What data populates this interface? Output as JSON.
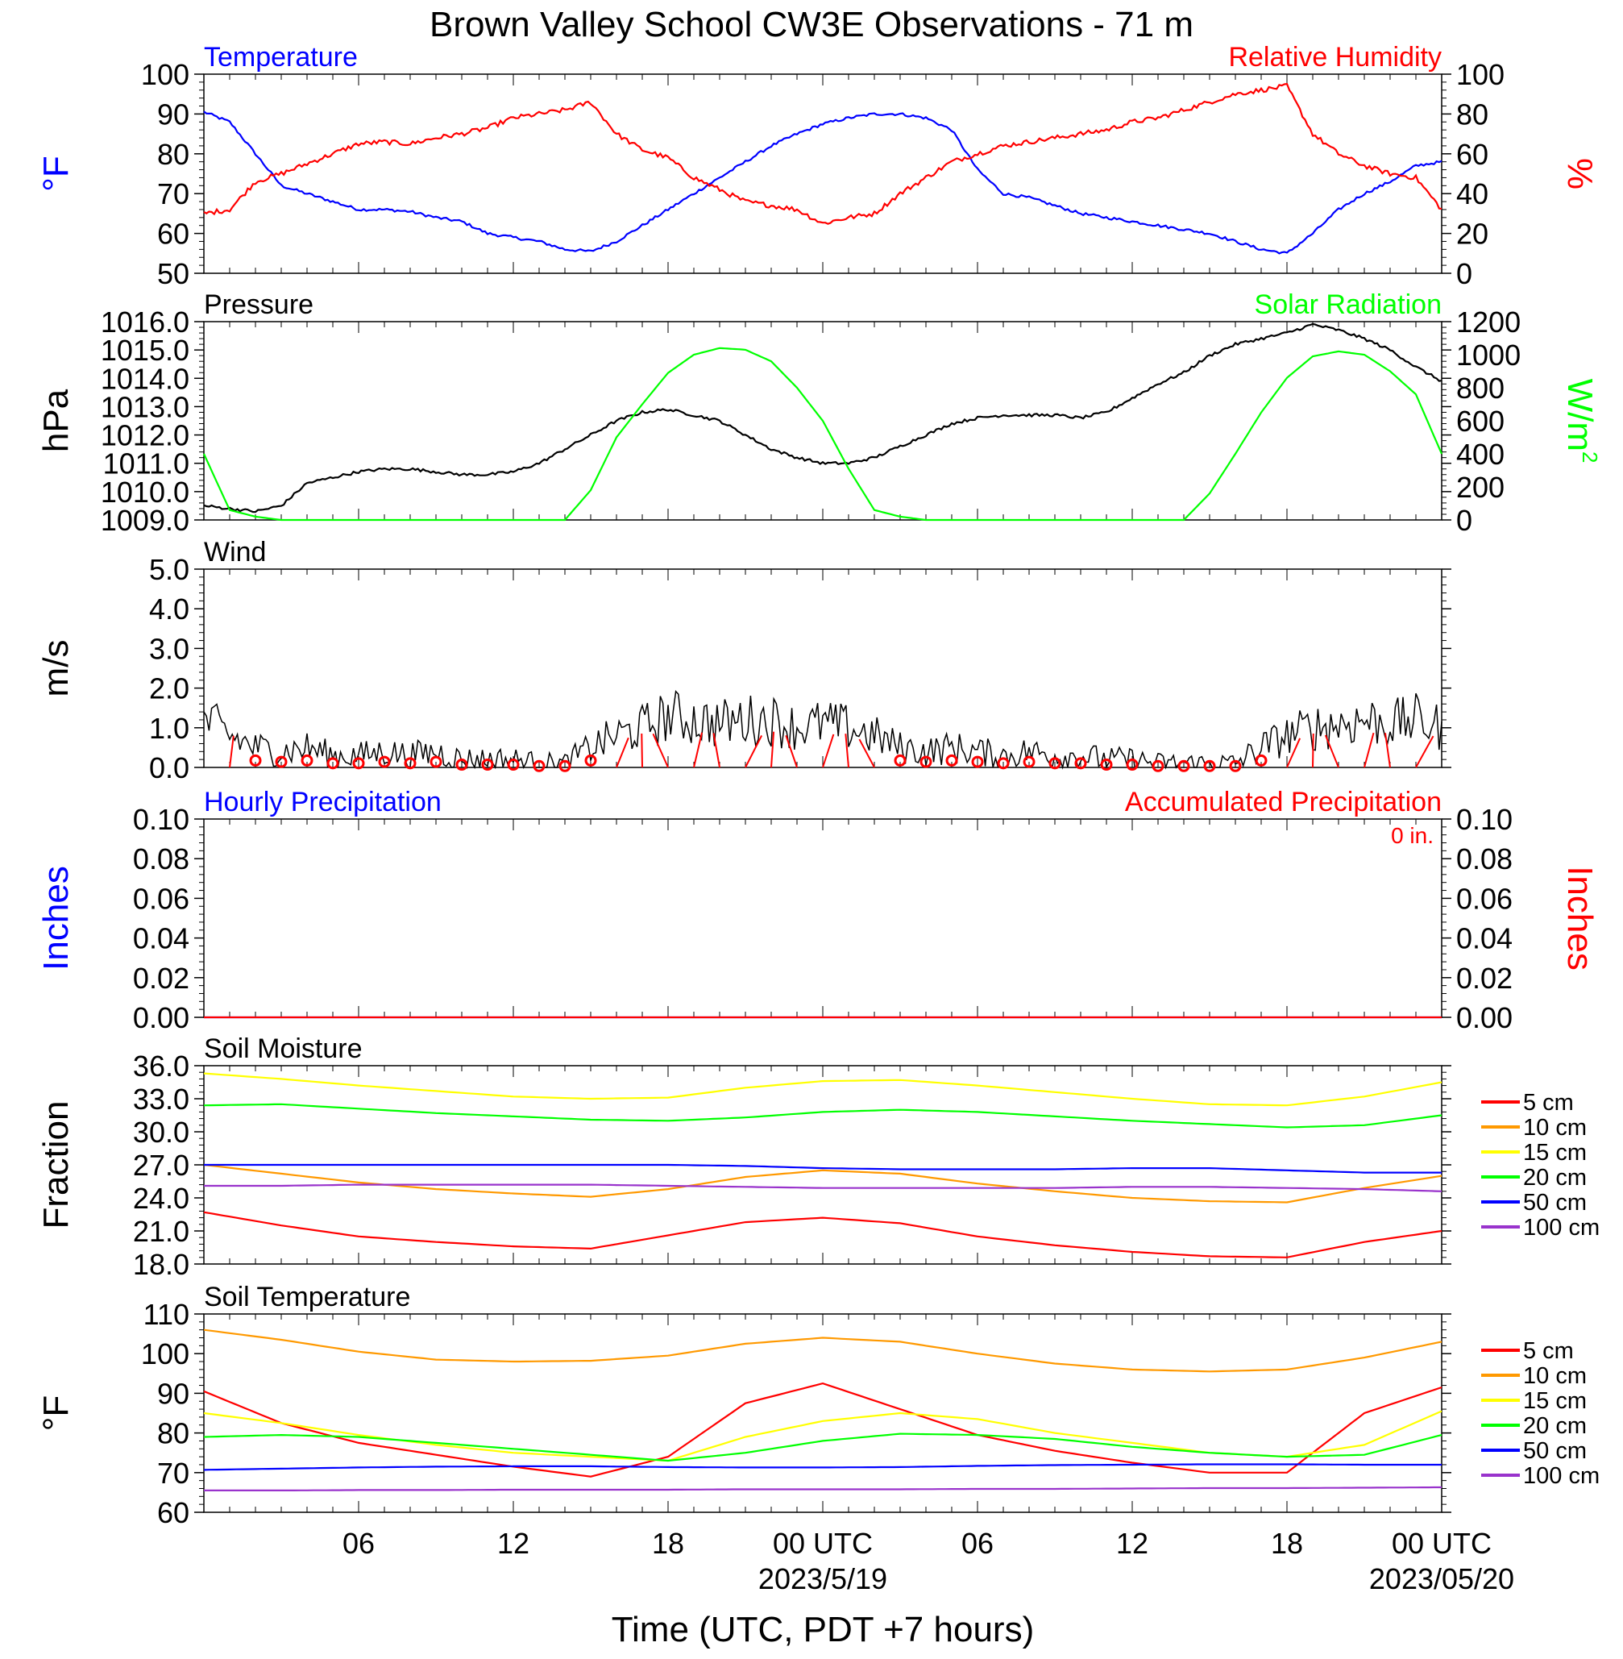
{
  "title": "Brown Valley School CW3E Observations - 71 m",
  "xaxis": {
    "label": "Time (UTC, PDT +7 hours)",
    "ticks": [
      "06",
      "12",
      "18",
      "00 UTC",
      "06",
      "12",
      "18",
      "00 UTC"
    ],
    "dates": [
      "2023/5/19",
      "2023/05/20"
    ]
  },
  "colors": {
    "temperature": "#0000ff",
    "humidity": "#ff0000",
    "pressure": "#000000",
    "solar": "#00ff00",
    "wind": "#000000",
    "barb": "#ff0000",
    "hourly": "#0000ff",
    "accum": "#ff0000"
  },
  "chart_data": [
    {
      "type": "line",
      "panel": "temperature-humidity",
      "title_left": "Temperature",
      "title_right": "Relative Humidity",
      "ylabel_left": "°F",
      "ylabel_right": "%",
      "ylim_left": [
        50,
        100
      ],
      "ylim_right": [
        0,
        100
      ],
      "yticks_left": [
        "50",
        "60",
        "70",
        "80",
        "90",
        "100"
      ],
      "yticks_right": [
        "0",
        "20",
        "40",
        "60",
        "80",
        "100"
      ],
      "x_hours": [
        0,
        1,
        2,
        3,
        4,
        5,
        6,
        7,
        8,
        9,
        10,
        11,
        12,
        13,
        14,
        15,
        16,
        17,
        18,
        19,
        20,
        21,
        22,
        23,
        24,
        25,
        26,
        27,
        28,
        29,
        30,
        31,
        32,
        33,
        34,
        35,
        36,
        37,
        38,
        39,
        40,
        41,
        42,
        43,
        44,
        45,
        46,
        47,
        48
      ],
      "series": [
        {
          "name": "Temperature",
          "axis": "left",
          "values": [
            90.5,
            88,
            80,
            72,
            70,
            68,
            66,
            66,
            65.5,
            64,
            63,
            60,
            59,
            58,
            56,
            55.5,
            58,
            62,
            66,
            70,
            74,
            78,
            82,
            85,
            87.5,
            89,
            90,
            90,
            89,
            86,
            76,
            70,
            69,
            67,
            65,
            64,
            63,
            62,
            61,
            60,
            58,
            56,
            55,
            60,
            66,
            70,
            73,
            77,
            78
          ]
        },
        {
          "name": "Relative Humidity",
          "axis": "right",
          "values": [
            30,
            32,
            46,
            50,
            55,
            60,
            65,
            66,
            65,
            68,
            70,
            73,
            78,
            80,
            82,
            86,
            70,
            62,
            58,
            48,
            42,
            36,
            34,
            32,
            25,
            28,
            30,
            40,
            48,
            56,
            60,
            64,
            66,
            68,
            70,
            72,
            76,
            78,
            82,
            86,
            90,
            92,
            94,
            70,
            60,
            54,
            50,
            48,
            32
          ]
        }
      ]
    },
    {
      "type": "line",
      "panel": "pressure-solar",
      "title_left": "Pressure",
      "title_right": "Solar Radiation",
      "ylabel_left": "hPa",
      "ylabel_right": "W/m",
      "ylabel_right_sup": "2",
      "ylim_left": [
        1009,
        1016
      ],
      "ylim_right": [
        0,
        1200
      ],
      "yticks_left": [
        "1009.0",
        "1010.0",
        "1011.0",
        "1012.0",
        "1013.0",
        "1014.0",
        "1015.0",
        "1016.0"
      ],
      "yticks_right": [
        "0",
        "200",
        "400",
        "600",
        "800",
        "1000",
        "1200"
      ],
      "x_hours": [
        0,
        1,
        2,
        3,
        4,
        5,
        6,
        7,
        8,
        9,
        10,
        11,
        12,
        13,
        14,
        15,
        16,
        17,
        18,
        19,
        20,
        21,
        22,
        23,
        24,
        25,
        26,
        27,
        28,
        29,
        30,
        31,
        32,
        33,
        34,
        35,
        36,
        37,
        38,
        39,
        40,
        41,
        42,
        43,
        44,
        45,
        46,
        47,
        48
      ],
      "series": [
        {
          "name": "Pressure",
          "axis": "left",
          "values": [
            1009.5,
            1009.4,
            1009.3,
            1009.5,
            1010.3,
            1010.5,
            1010.7,
            1010.8,
            1010.8,
            1010.7,
            1010.6,
            1010.6,
            1010.7,
            1011.0,
            1011.5,
            1012.0,
            1012.5,
            1012.8,
            1012.9,
            1012.7,
            1012.5,
            1012.0,
            1011.5,
            1011.2,
            1011.0,
            1011.0,
            1011.2,
            1011.6,
            1012.0,
            1012.4,
            1012.6,
            1012.7,
            1012.7,
            1012.7,
            1012.6,
            1012.8,
            1013.3,
            1013.8,
            1014.2,
            1014.8,
            1015.2,
            1015.4,
            1015.6,
            1015.9,
            1015.7,
            1015.4,
            1015.0,
            1014.4,
            1013.9
          ]
        },
        {
          "name": "Solar Radiation",
          "axis": "right",
          "values": [
            400,
            60,
            20,
            0,
            0,
            0,
            0,
            0,
            0,
            0,
            0,
            0,
            0,
            0,
            0,
            180,
            500,
            700,
            890,
            1000,
            1040,
            1030,
            960,
            800,
            600,
            310,
            60,
            20,
            0,
            0,
            0,
            0,
            0,
            0,
            0,
            0,
            0,
            0,
            0,
            160,
            400,
            650,
            860,
            990,
            1020,
            1000,
            900,
            760,
            400
          ]
        }
      ]
    },
    {
      "type": "line",
      "panel": "wind",
      "title_left": "Wind",
      "ylabel_left": "m/s",
      "ylim_left": [
        0,
        5
      ],
      "yticks_left": [
        "0.0",
        "1.0",
        "2.0",
        "3.0",
        "4.0",
        "5.0"
      ],
      "x_hours": [
        0,
        1,
        2,
        3,
        4,
        5,
        6,
        7,
        8,
        9,
        10,
        11,
        12,
        13,
        14,
        15,
        16,
        17,
        18,
        19,
        20,
        21,
        22,
        23,
        24,
        25,
        26,
        27,
        28,
        29,
        30,
        31,
        32,
        33,
        34,
        35,
        36,
        37,
        38,
        39,
        40,
        41,
        42,
        43,
        44,
        45,
        46,
        47,
        48
      ],
      "series": [
        {
          "name": "Wind speed",
          "values": [
            1.2,
            0.8,
            0.5,
            0.4,
            0.5,
            0.3,
            0.3,
            0.4,
            0.3,
            0.4,
            0.2,
            0.2,
            0.2,
            0.1,
            0.1,
            0.5,
            0.8,
            1.0,
            1.3,
            1.2,
            1.1,
            1.2,
            1.2,
            1.0,
            1.1,
            1.0,
            0.8,
            0.5,
            0.4,
            0.5,
            0.4,
            0.3,
            0.4,
            0.3,
            0.3,
            0.2,
            0.2,
            0.1,
            0.1,
            0.1,
            0.1,
            0.5,
            0.8,
            1.0,
            1.1,
            1.2,
            1.1,
            1.2,
            1.0
          ]
        }
      ]
    },
    {
      "type": "line",
      "panel": "precipitation",
      "title_left": "Hourly Precipitation",
      "title_right": "Accumulated Precipitation",
      "annotation": "0 in.",
      "ylabel_left": "Inches",
      "ylabel_right": "Inches",
      "ylim_left": [
        0,
        0.1
      ],
      "ylim_right": [
        0,
        0.1
      ],
      "yticks_left": [
        "0.00",
        "0.02",
        "0.04",
        "0.06",
        "0.08",
        "0.10"
      ],
      "yticks_right": [
        "0.00",
        "0.02",
        "0.04",
        "0.06",
        "0.08",
        "0.10"
      ],
      "x_hours": [
        0,
        48
      ],
      "series": [
        {
          "name": "Hourly Precipitation",
          "axis": "left",
          "values": [
            0,
            0
          ]
        },
        {
          "name": "Accumulated Precipitation",
          "axis": "right",
          "values": [
            0,
            0
          ]
        }
      ]
    },
    {
      "type": "line",
      "panel": "soil-moisture",
      "title_left": "Soil Moisture",
      "ylabel_left": "Fraction",
      "ylim_left": [
        18,
        36
      ],
      "yticks_left": [
        "18.0",
        "21.0",
        "24.0",
        "27.0",
        "30.0",
        "33.0",
        "36.0"
      ],
      "legend": [
        "5 cm",
        "10 cm",
        "15 cm",
        "20 cm",
        "50 cm",
        "100 cm"
      ],
      "legend_colors": [
        "#ff0000",
        "#ff9900",
        "#ffff00",
        "#00ff00",
        "#0000ff",
        "#9933cc"
      ],
      "x_hours": [
        0,
        3,
        6,
        9,
        12,
        15,
        18,
        21,
        24,
        27,
        30,
        33,
        36,
        39,
        42,
        45,
        48
      ],
      "series": [
        {
          "name": "5 cm",
          "values": [
            22.7,
            21.5,
            20.5,
            20.0,
            19.6,
            19.4,
            20.6,
            21.8,
            22.2,
            21.7,
            20.5,
            19.7,
            19.1,
            18.7,
            18.6,
            20.0,
            21.0
          ]
        },
        {
          "name": "10 cm",
          "values": [
            27.0,
            26.2,
            25.4,
            24.8,
            24.4,
            24.1,
            24.8,
            25.9,
            26.5,
            26.2,
            25.3,
            24.6,
            24.0,
            23.7,
            23.6,
            24.9,
            26.0
          ]
        },
        {
          "name": "15 cm",
          "values": [
            35.3,
            34.8,
            34.2,
            33.7,
            33.2,
            33.0,
            33.1,
            34.0,
            34.6,
            34.7,
            34.2,
            33.6,
            33.0,
            32.5,
            32.4,
            33.2,
            34.5
          ]
        },
        {
          "name": "20 cm",
          "values": [
            32.4,
            32.5,
            32.1,
            31.7,
            31.4,
            31.1,
            31.0,
            31.3,
            31.8,
            32.0,
            31.8,
            31.4,
            31.0,
            30.7,
            30.4,
            30.6,
            31.5
          ]
        },
        {
          "name": "50 cm",
          "values": [
            27.0,
            27.0,
            27.0,
            27.0,
            27.0,
            27.0,
            27.0,
            26.9,
            26.7,
            26.6,
            26.6,
            26.6,
            26.7,
            26.7,
            26.5,
            26.3,
            26.3
          ]
        },
        {
          "name": "100 cm",
          "values": [
            25.1,
            25.1,
            25.2,
            25.2,
            25.2,
            25.2,
            25.1,
            25.0,
            24.9,
            24.9,
            24.9,
            24.9,
            25.0,
            25.0,
            24.9,
            24.8,
            24.6
          ]
        }
      ]
    },
    {
      "type": "line",
      "panel": "soil-temperature",
      "title_left": "Soil Temperature",
      "ylabel_left": "°F",
      "ylim_left": [
        60,
        110
      ],
      "yticks_left": [
        "60",
        "70",
        "80",
        "90",
        "100",
        "110"
      ],
      "legend": [
        "5 cm",
        "10 cm",
        "15 cm",
        "20 cm",
        "50 cm",
        "100 cm"
      ],
      "legend_colors": [
        "#ff0000",
        "#ff9900",
        "#ffff00",
        "#00ff00",
        "#0000ff",
        "#9933cc"
      ],
      "x_hours": [
        0,
        3,
        6,
        9,
        12,
        15,
        18,
        21,
        24,
        27,
        30,
        33,
        36,
        39,
        42,
        45,
        48
      ],
      "series": [
        {
          "name": "5 cm",
          "values": [
            90.5,
            82.5,
            77.5,
            74.5,
            71.5,
            69.0,
            74.0,
            87.5,
            92.5,
            86.0,
            79.5,
            75.5,
            72.5,
            70.0,
            70.0,
            85.0,
            91.5
          ]
        },
        {
          "name": "10 cm",
          "values": [
            106.0,
            103.5,
            100.5,
            98.5,
            98.0,
            98.2,
            99.5,
            102.5,
            104.0,
            103.0,
            100.0,
            97.5,
            96.0,
            95.5,
            96.0,
            99.0,
            103.0
          ]
        },
        {
          "name": "15 cm",
          "values": [
            85.0,
            82.5,
            79.5,
            77.0,
            75.0,
            74.0,
            73.0,
            79.0,
            83.0,
            85.0,
            83.5,
            80.0,
            77.5,
            75.0,
            74.0,
            77.0,
            85.5
          ]
        },
        {
          "name": "20 cm",
          "values": [
            79.0,
            79.5,
            79.0,
            77.5,
            76.0,
            74.5,
            73.0,
            75.0,
            78.0,
            79.8,
            79.5,
            78.5,
            76.5,
            75.0,
            74.0,
            74.5,
            79.5
          ]
        },
        {
          "name": "50 cm",
          "values": [
            70.7,
            71.0,
            71.3,
            71.5,
            71.6,
            71.6,
            71.4,
            71.3,
            71.3,
            71.4,
            71.7,
            71.9,
            72.0,
            72.1,
            72.1,
            72.0,
            72.0
          ]
        },
        {
          "name": "100 cm",
          "values": [
            65.5,
            65.5,
            65.6,
            65.6,
            65.7,
            65.7,
            65.7,
            65.8,
            65.8,
            65.8,
            65.9,
            65.9,
            66.0,
            66.1,
            66.1,
            66.2,
            66.3
          ]
        }
      ]
    }
  ]
}
